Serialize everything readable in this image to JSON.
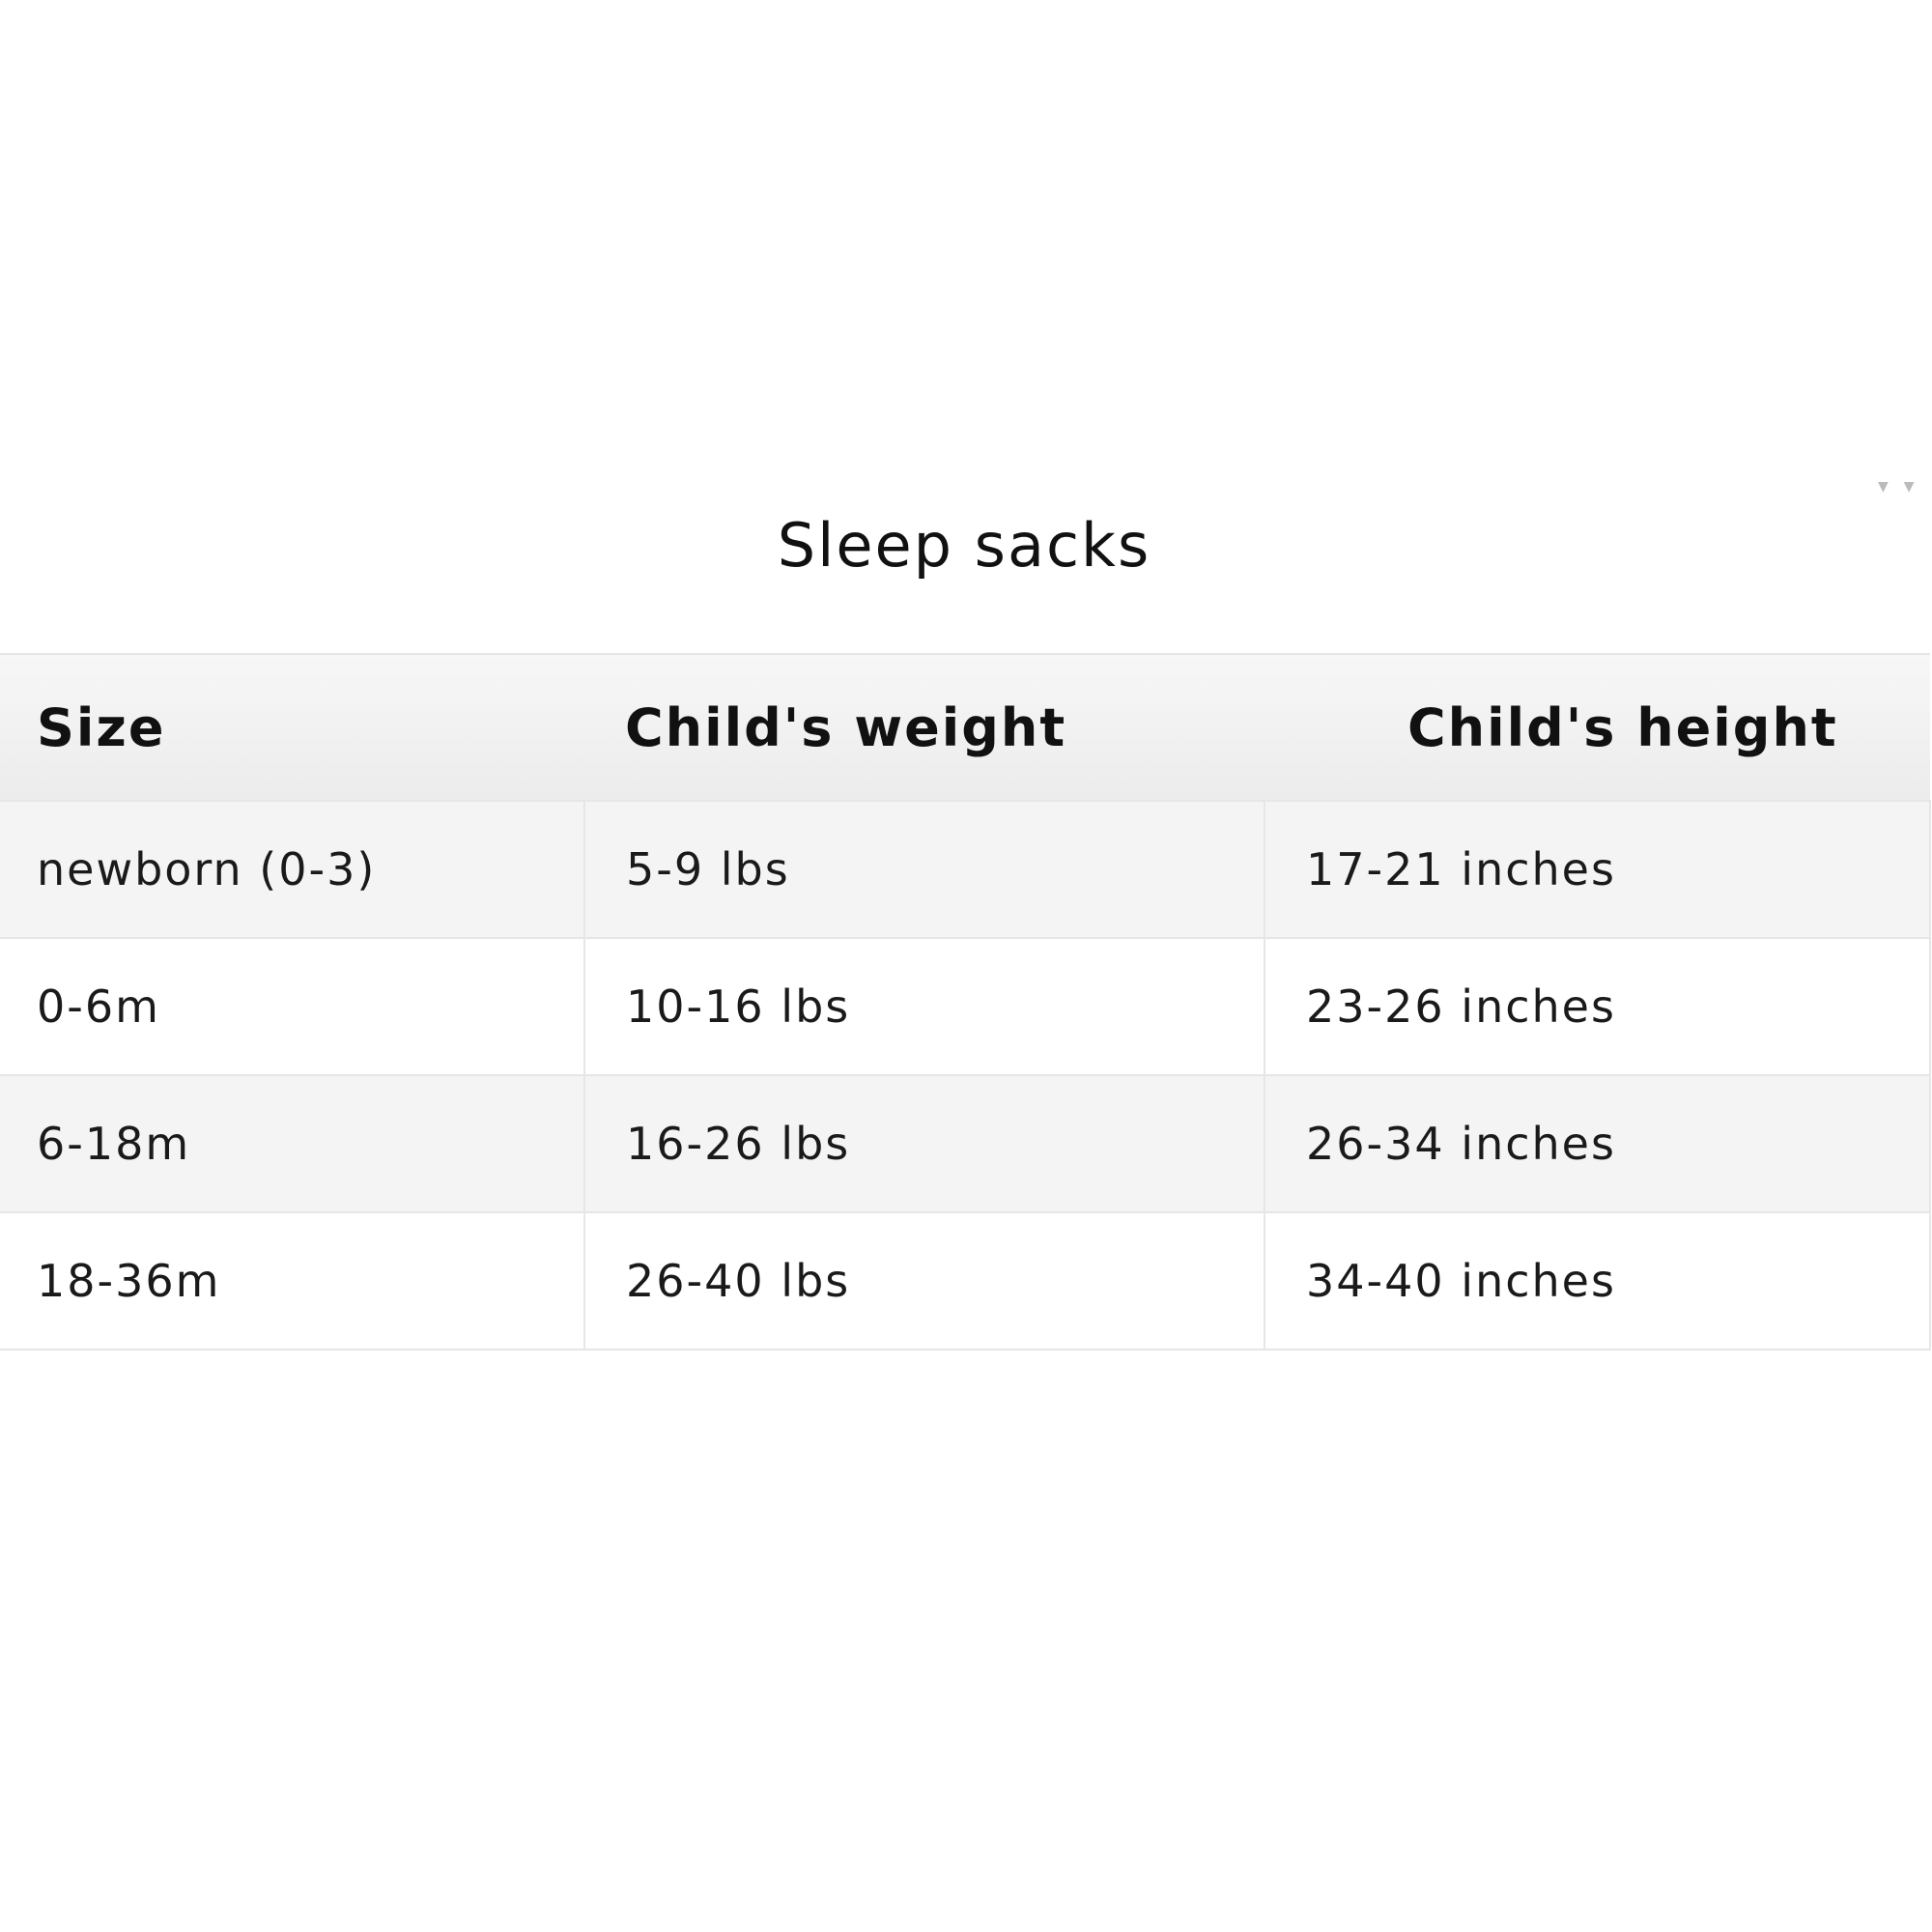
{
  "title": "Sleep sacks",
  "table": {
    "headers": [
      "Size",
      "Child's weight",
      "Child's height"
    ],
    "rows": [
      [
        "newborn (0-3)",
        "5-9 lbs",
        "17-21 inches"
      ],
      [
        "0-6m",
        "10-16 lbs",
        "23-26 inches"
      ],
      [
        "6-18m",
        "16-26 lbs",
        "26-34 inches"
      ],
      [
        "18-36m",
        "26-40 lbs",
        "34-40 inches"
      ]
    ]
  },
  "icons": {
    "scroll_arrows": "chevron-down-icon"
  }
}
